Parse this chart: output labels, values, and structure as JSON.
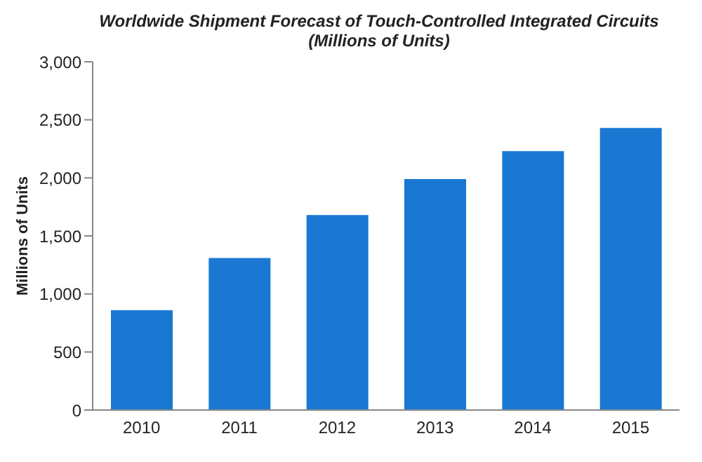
{
  "chart_data": {
    "type": "bar",
    "title": "Worldwide Shipment Forecast of Touch-Controlled Integrated Circuits",
    "subtitle": "(Millions of Units)",
    "ylabel": "Millions of Units",
    "categories": [
      "2010",
      "2011",
      "2012",
      "2013",
      "2014",
      "2015"
    ],
    "values": [
      860,
      1310,
      1680,
      1990,
      2230,
      2430
    ],
    "color": "#1a78d2",
    "ylim": [
      0,
      3000
    ],
    "yticks": [
      {
        "value": 0,
        "label": "0"
      },
      {
        "value": 500,
        "label": "500"
      },
      {
        "value": 1000,
        "label": "1,000"
      },
      {
        "value": 1500,
        "label": "1,500"
      },
      {
        "value": 2000,
        "label": "2,000"
      },
      {
        "value": 2500,
        "label": "2,500"
      },
      {
        "value": 3000,
        "label": "3,000"
      }
    ],
    "grid": false,
    "legend": false
  }
}
